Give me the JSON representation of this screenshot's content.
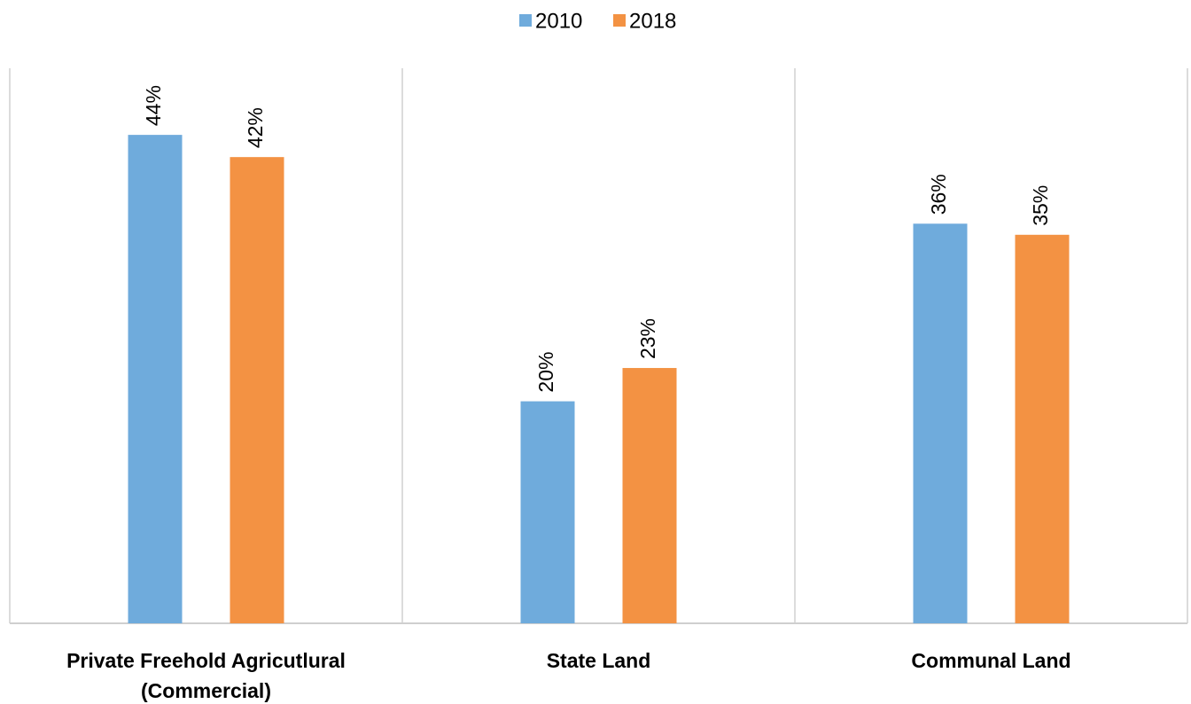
{
  "chart_data": {
    "type": "bar",
    "categories": [
      "Private Freehold Agricutlural (Commercial)",
      "State Land",
      "Communal Land"
    ],
    "series": [
      {
        "name": "2010",
        "color": "#6fabdc",
        "values": [
          44,
          20,
          36
        ],
        "value_labels": [
          "44%",
          "20%",
          "36%"
        ]
      },
      {
        "name": "2018",
        "color": "#f39243",
        "values": [
          42,
          23,
          35
        ],
        "value_labels": [
          "42%",
          "23%",
          "35%"
        ]
      }
    ],
    "ylim": [
      0,
      50
    ],
    "legend": "top"
  }
}
